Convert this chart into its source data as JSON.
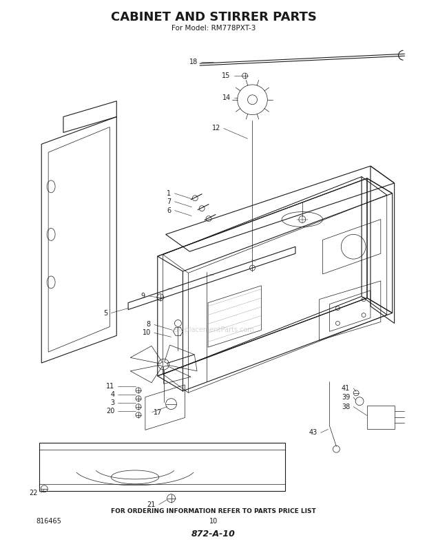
{
  "title": "CABINET AND STIRRER PARTS",
  "subtitle": "For Model: RM778PXT-3",
  "footer_text": "FOR ORDERING INFORMATION REFER TO PARTS PRICE LIST",
  "page_number": "10",
  "doc_number": "872-A-10",
  "part_number_left": "816465",
  "bg_color": "#ffffff",
  "line_color": "#1a1a1a",
  "watermark_text": "eReplacementParts.com",
  "title_fontsize": 13,
  "subtitle_fontsize": 7.5,
  "footer_fontsize": 6.5
}
